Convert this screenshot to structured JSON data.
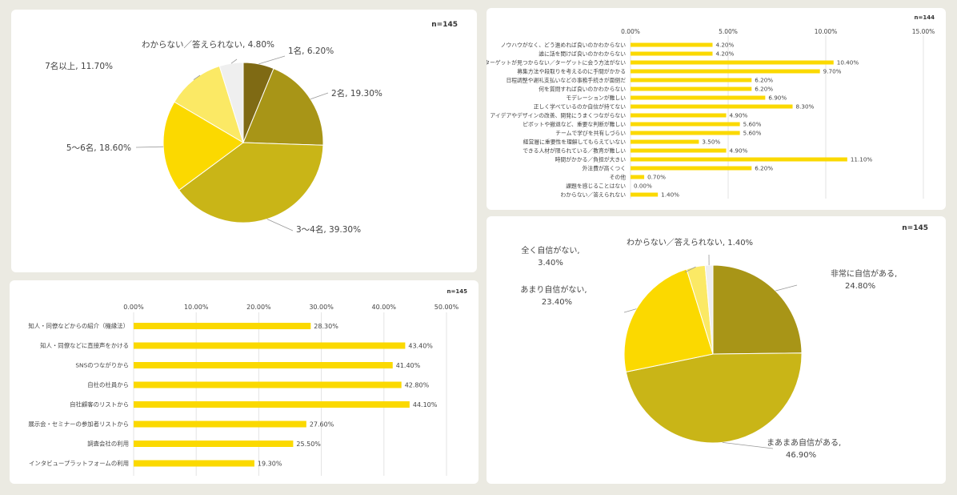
{
  "colors": {
    "bar": "#fbd900",
    "c_dark_olive": "#7f6a14",
    "c_olive": "#a89517",
    "c_khaki": "#c9b517",
    "c_yellow": "#fbd900",
    "c_light_yellow": "#fbe965",
    "c_white_gray": "#efefef",
    "grid": "#e3e3e3",
    "text": "#444444"
  },
  "chart_data": [
    {
      "id": "pie-team-size",
      "type": "pie",
      "n_label": "n=145",
      "slices": [
        {
          "label": "1名",
          "value": 6.2,
          "display": "1名, 6.20%",
          "color": "#7f6a14"
        },
        {
          "label": "2名",
          "value": 19.3,
          "display": "2名, 19.30%",
          "color": "#a89517"
        },
        {
          "label": "3～4名",
          "value": 39.3,
          "display": "3～4名, 39.30%",
          "color": "#c9b517"
        },
        {
          "label": "5～6名",
          "value": 18.6,
          "display": "5～6名, 18.60%",
          "color": "#fbd900"
        },
        {
          "label": "7名以上",
          "value": 11.7,
          "display": "7名以上, 11.70%",
          "color": "#fbe965"
        },
        {
          "label": "わからない／答えられない",
          "value": 4.8,
          "display": "わからない／答えられない, 4.80%",
          "color": "#efefef"
        }
      ]
    },
    {
      "id": "bar-challenges",
      "type": "bar",
      "orientation": "horizontal",
      "n_label": "n=144",
      "xlim": [
        0,
        15
      ],
      "ticks": [
        "0.00%",
        "5.00%",
        "10.00%",
        "15.00%"
      ],
      "categories": [
        "ノウハウがなく、どう進めれば良いのかわからない",
        "誰に話を聞けば良いのかわからない",
        "ターゲットが見つからない／ターゲットに会う方法がない",
        "募集方法や段取りを考えるのに手間がかかる",
        "日程調整や謝礼支払いなどの事務手続きが面倒だ",
        "何を質問すれば良いのかわからない",
        "モデレーションが難しい",
        "正しく学べているのか自信が持てない",
        "アイデアやデザインの改善、開発にうまくつながらない",
        "ピボットや撤退など、重要な判断が難しい",
        "チームで学びを共有しづらい",
        "経営層に重要性を理解してもらえていない",
        "できる人材が限られている／教育が難しい",
        "時間がかかる／負担が大きい",
        "外注費が高くつく",
        "その他",
        "課題を感じることはない",
        "わからない／答えられない"
      ],
      "values": [
        4.2,
        4.2,
        10.4,
        9.7,
        6.2,
        6.2,
        6.9,
        8.3,
        4.9,
        5.6,
        5.6,
        3.5,
        4.9,
        11.1,
        6.2,
        0.7,
        0.0,
        1.4
      ],
      "value_labels": [
        "4.20%",
        "4.20%",
        "10.40%",
        "9.70%",
        "6.20%",
        "6.20%",
        "6.90%",
        "8.30%",
        "4.90%",
        "5.60%",
        "5.60%",
        "3.50%",
        "4.90%",
        "11.10%",
        "6.20%",
        "0.70%",
        "0.00%",
        "1.40%"
      ]
    },
    {
      "id": "bar-recruit",
      "type": "bar",
      "orientation": "horizontal",
      "n_label": "n=145",
      "xlim": [
        0,
        50
      ],
      "ticks": [
        "0.00%",
        "10.00%",
        "20.00%",
        "30.00%",
        "40.00%",
        "50.00%"
      ],
      "categories": [
        "知人・同僚などからの紹介（機縁法）",
        "知人・同僚などに直接声をかける",
        "SNSのつながりから",
        "自社の社員から",
        "自社顧客のリストから",
        "展示会・セミナーの参加者リストから",
        "調査会社の利用",
        "インタビュープラットフォームの利用"
      ],
      "values": [
        28.3,
        43.4,
        41.4,
        42.8,
        44.1,
        27.6,
        25.5,
        19.3
      ],
      "value_labels": [
        "28.30%",
        "43.40%",
        "41.40%",
        "42.80%",
        "44.10%",
        "27.60%",
        "25.50%",
        "19.30%"
      ]
    },
    {
      "id": "pie-confidence",
      "type": "pie",
      "n_label": "n=145",
      "slices": [
        {
          "label": "非常に自信がある",
          "value": 24.8,
          "line1": "非常に自信がある,",
          "line2": "24.80%",
          "color": "#a89517"
        },
        {
          "label": "まあまあ自信がある",
          "value": 46.9,
          "line1": "まあまあ自信がある,",
          "line2": "46.90%",
          "color": "#c9b517"
        },
        {
          "label": "あまり自信がない",
          "value": 23.4,
          "line1": "あまり自信がない,",
          "line2": "23.40%",
          "color": "#fbd900"
        },
        {
          "label": "全く自信がない",
          "value": 3.4,
          "line1": "全く自信がない,",
          "line2": "3.40%",
          "color": "#fbe965"
        },
        {
          "label": "わからない／答えられない",
          "value": 1.4,
          "line1": "わからない／答えられない, 1.40%",
          "line2": "",
          "color": "#efefef"
        }
      ]
    }
  ]
}
